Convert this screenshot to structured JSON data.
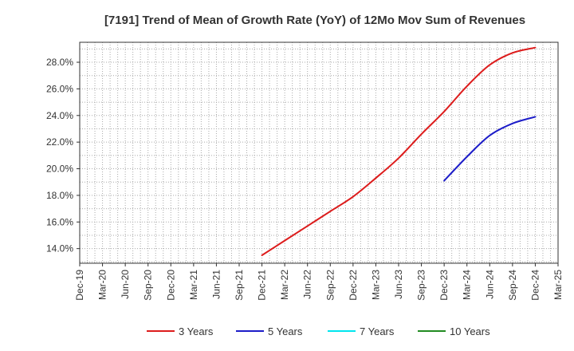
{
  "chart_data": {
    "type": "line",
    "title": "[7191]  Trend of Mean of Growth Rate (YoY) of 12Mo Mov Sum of Revenues",
    "xlabel": "",
    "ylabel": "",
    "x_ticks": [
      "Dec-19",
      "Mar-20",
      "Jun-20",
      "Sep-20",
      "Dec-20",
      "Mar-21",
      "Jun-21",
      "Sep-21",
      "Dec-21",
      "Mar-22",
      "Jun-22",
      "Sep-22",
      "Dec-22",
      "Mar-23",
      "Jun-23",
      "Sep-23",
      "Dec-23",
      "Mar-24",
      "Jun-24",
      "Sep-24",
      "Dec-24",
      "Mar-25"
    ],
    "y_ticks": [
      "14.0%",
      "16.0%",
      "18.0%",
      "20.0%",
      "22.0%",
      "24.0%",
      "26.0%",
      "28.0%"
    ],
    "y_tick_values": [
      14,
      16,
      18,
      20,
      22,
      24,
      26,
      28
    ],
    "ylim": [
      12.9,
      29.5
    ],
    "grid": true,
    "legend_position": "bottom",
    "series": [
      {
        "name": "3 Years",
        "color": "#dd1c1c",
        "points": [
          [
            8,
            13.5
          ],
          [
            9,
            14.6
          ],
          [
            10,
            15.7
          ],
          [
            11,
            16.8
          ],
          [
            12,
            17.9
          ],
          [
            13,
            19.3
          ],
          [
            14,
            20.8
          ],
          [
            15,
            22.6
          ],
          [
            16,
            24.3
          ],
          [
            17,
            26.2
          ],
          [
            18,
            27.8
          ],
          [
            19,
            28.7
          ],
          [
            20,
            29.1
          ]
        ]
      },
      {
        "name": "5 Years",
        "color": "#1c1cc8",
        "points": [
          [
            16,
            19.1
          ],
          [
            17,
            20.9
          ],
          [
            18,
            22.5
          ],
          [
            19,
            23.4
          ],
          [
            20,
            23.9
          ]
        ]
      },
      {
        "name": "7 Years",
        "color": "#00e5ee",
        "points": []
      },
      {
        "name": "10 Years",
        "color": "#228b22",
        "points": []
      }
    ]
  }
}
